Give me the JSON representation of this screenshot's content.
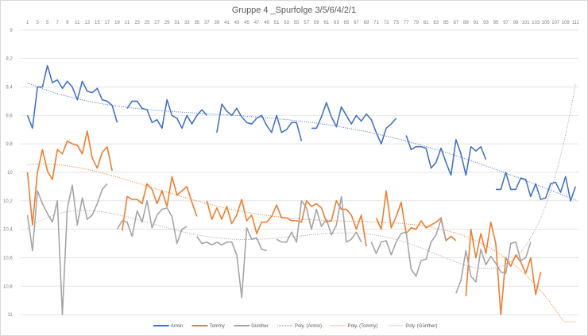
{
  "chart_data": {
    "type": "line",
    "title": "Gruppe 4 _Spurfolge 3/5/6/4/2/1",
    "xlabel": "",
    "ylabel": "",
    "x_range": [
      1,
      111
    ],
    "x_tick_step": 2,
    "ylim": [
      9,
      11
    ],
    "y_reversed": true,
    "y_ticks": [
      "9",
      "9,2",
      "9,4",
      "9,6",
      "9,8",
      "10",
      "10,2",
      "10,4",
      "10,6",
      "10,8",
      "11"
    ],
    "grid": true,
    "legend_position": "bottom",
    "series": [
      {
        "name": "Armin",
        "color": "#4472c4",
        "values": [
          9.6,
          9.69,
          9.4,
          9.4,
          9.25,
          9.37,
          9.35,
          9.41,
          9.36,
          9.4,
          9.49,
          9.36,
          9.43,
          9.44,
          9.41,
          9.49,
          9.5,
          9.53,
          9.65,
          null,
          9.55,
          9.5,
          9.5,
          9.55,
          9.56,
          9.65,
          9.63,
          9.69,
          9.49,
          9.6,
          9.62,
          9.69,
          9.6,
          9.66,
          9.6,
          9.56,
          9.6,
          null,
          9.72,
          9.52,
          9.57,
          9.6,
          9.55,
          9.61,
          9.65,
          9.66,
          9.62,
          9.6,
          9.67,
          9.72,
          9.6,
          9.72,
          9.7,
          9.65,
          9.65,
          9.78,
          null,
          9.69,
          9.69,
          9.61,
          9.51,
          9.61,
          9.68,
          9.54,
          9.6,
          9.66,
          9.6,
          9.64,
          9.59,
          9.63,
          9.72,
          9.8,
          9.69,
          9.66,
          9.62,
          null,
          9.74,
          9.84,
          9.82,
          9.82,
          9.83,
          9.97,
          9.93,
          9.83,
          9.93,
          10.02,
          9.77,
          9.87,
          10.02,
          9.82,
          9.85,
          9.82,
          9.91,
          null,
          10.12,
          10.12,
          10.0,
          10.12,
          10.12,
          10.04,
          10.05,
          10.17,
          10.08,
          10.19,
          10.18,
          10.08,
          10.07,
          10.14,
          10.03,
          10.2,
          10.1
        ]
      },
      {
        "name": "Tommy",
        "color": "#ed7d31",
        "values": [
          10.0,
          10.37,
          10.0,
          9.84,
          9.99,
          10.05,
          9.84,
          9.87,
          9.78,
          9.8,
          9.81,
          9.87,
          9.71,
          9.9,
          9.97,
          9.86,
          9.82,
          9.99,
          null,
          10.41,
          10.17,
          10.19,
          10.19,
          10.22,
          10.08,
          10.12,
          10.22,
          10.13,
          10.24,
          10.03,
          10.16,
          10.13,
          10.1,
          10.21,
          10.31,
          null,
          10.2,
          10.33,
          10.25,
          10.33,
          10.24,
          10.36,
          10.3,
          10.19,
          10.34,
          10.3,
          10.43,
          10.35,
          10.35,
          10.31,
          10.23,
          10.32,
          10.32,
          10.34,
          10.34,
          10.35,
          10.2,
          10.24,
          10.22,
          10.25,
          10.35,
          10.34,
          10.2,
          10.26,
          10.26,
          10.3,
          10.4,
          10.3,
          10.52,
          null,
          10.32,
          10.4,
          10.13,
          10.39,
          10.31,
          10.21,
          10.43,
          10.39,
          10.4,
          10.34,
          10.39,
          10.37,
          10.35,
          10.32,
          10.48,
          10.45,
          10.48,
          null,
          10.87,
          10.4,
          10.6,
          10.43,
          10.57,
          10.35,
          10.5,
          11.0,
          10.6,
          10.66,
          10.58,
          10.63,
          10.71,
          10.6,
          10.86,
          10.7,
          null,
          null,
          null,
          null,
          null,
          null,
          null
        ]
      },
      {
        "name": "Günther",
        "color": "#a5a5a5",
        "values": [
          10.3,
          10.55,
          10.13,
          10.22,
          10.29,
          10.35,
          10.2,
          11.0,
          10.25,
          10.09,
          10.37,
          10.18,
          10.33,
          10.3,
          10.22,
          10.12,
          10.08,
          null,
          10.4,
          10.34,
          10.35,
          10.45,
          10.27,
          10.35,
          10.2,
          10.39,
          10.3,
          10.26,
          10.25,
          10.31,
          10.5,
          10.4,
          10.38,
          null,
          10.45,
          10.5,
          10.49,
          10.51,
          10.49,
          10.51,
          10.49,
          10.49,
          10.58,
          10.88,
          10.39,
          10.47,
          10.46,
          10.54,
          10.55,
          null,
          10.47,
          10.49,
          10.49,
          10.42,
          10.49,
          10.2,
          10.25,
          10.4,
          10.26,
          10.38,
          10.33,
          10.44,
          10.37,
          10.17,
          10.49,
          10.47,
          10.42,
          10.49,
          null,
          10.49,
          10.57,
          10.49,
          10.48,
          10.58,
          10.49,
          10.43,
          10.42,
          10.68,
          10.73,
          10.62,
          10.61,
          10.49,
          10.44,
          10.33,
          10.48,
          null,
          10.85,
          10.76,
          10.55,
          10.73,
          10.77,
          10.54,
          10.65,
          10.59,
          10.64,
          10.7,
          10.71,
          10.5,
          10.49,
          10.62,
          10.6,
          10.49,
          null,
          null,
          null,
          null,
          null,
          null,
          null,
          null,
          null
        ]
      }
    ],
    "trendlines": [
      {
        "name": "Poly. (Armin)",
        "of": "Armin",
        "color": "#4472c4",
        "degree": 4
      },
      {
        "name": "Poly. (Tommy)",
        "of": "Tommy",
        "color": "#ed7d31",
        "degree": 4
      },
      {
        "name": "Poly. (Günther)",
        "of": "Günther",
        "color": "#a5a5a5",
        "degree": 6
      }
    ]
  }
}
